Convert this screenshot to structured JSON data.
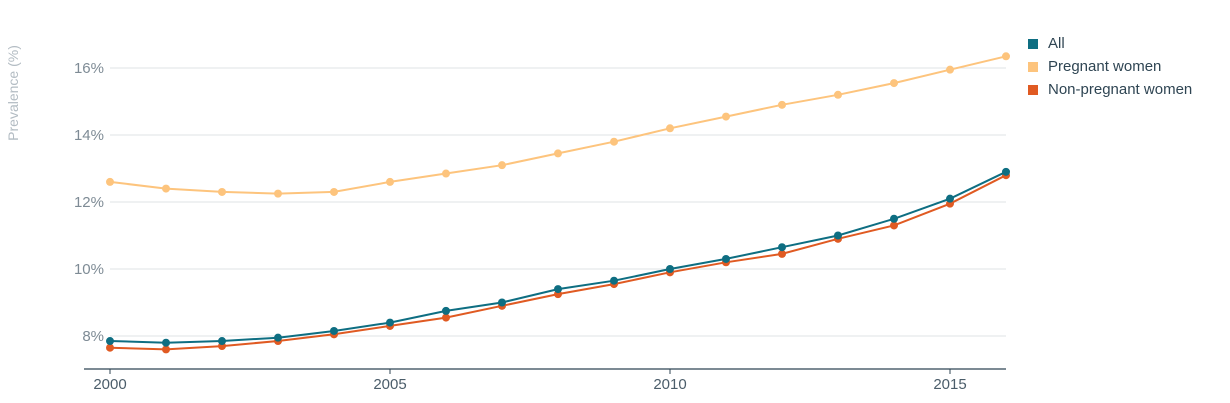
{
  "chart_data": {
    "type": "line",
    "title": "",
    "xlabel": "",
    "ylabel": "Prevalence (%)",
    "xlim": [
      2000,
      2016
    ],
    "ylim": [
      7,
      17
    ],
    "y_ticks": [
      8,
      10,
      12,
      14,
      16
    ],
    "y_tick_labels": [
      "8%",
      "10%",
      "12%",
      "14%",
      "16%"
    ],
    "x_ticks": [
      2000,
      2005,
      2010,
      2015
    ],
    "x_tick_labels": [
      "2000",
      "2005",
      "2010",
      "2015"
    ],
    "grid": "horizontal",
    "legend_position": "top-right",
    "x": [
      2000,
      2001,
      2002,
      2003,
      2004,
      2005,
      2006,
      2007,
      2008,
      2009,
      2010,
      2011,
      2012,
      2013,
      2014,
      2015,
      2016
    ],
    "series": [
      {
        "name": "Pregnant women",
        "color": "#fdc47d",
        "values": [
          12.6,
          12.4,
          12.3,
          12.25,
          12.3,
          12.6,
          12.85,
          13.1,
          13.45,
          13.8,
          14.2,
          14.55,
          14.9,
          15.2,
          15.55,
          15.95,
          16.35
        ]
      },
      {
        "name": "Non-pregnant women",
        "color": "#e05a22",
        "values": [
          7.65,
          7.6,
          7.7,
          7.85,
          8.05,
          8.3,
          8.55,
          8.9,
          9.25,
          9.55,
          9.9,
          10.2,
          10.45,
          10.9,
          11.3,
          11.95,
          12.8
        ]
      },
      {
        "name": "All",
        "color": "#0e6e82",
        "values": [
          7.85,
          7.8,
          7.85,
          7.95,
          8.15,
          8.4,
          8.75,
          9.0,
          9.4,
          9.65,
          10.0,
          10.3,
          10.65,
          11.0,
          11.5,
          12.1,
          12.9
        ]
      }
    ]
  },
  "legend": [
    {
      "label": "All",
      "color": "#0e6e82"
    },
    {
      "label": "Pregnant women",
      "color": "#fdc47d"
    },
    {
      "label": "Non-pregnant women",
      "color": "#e05a22"
    }
  ]
}
